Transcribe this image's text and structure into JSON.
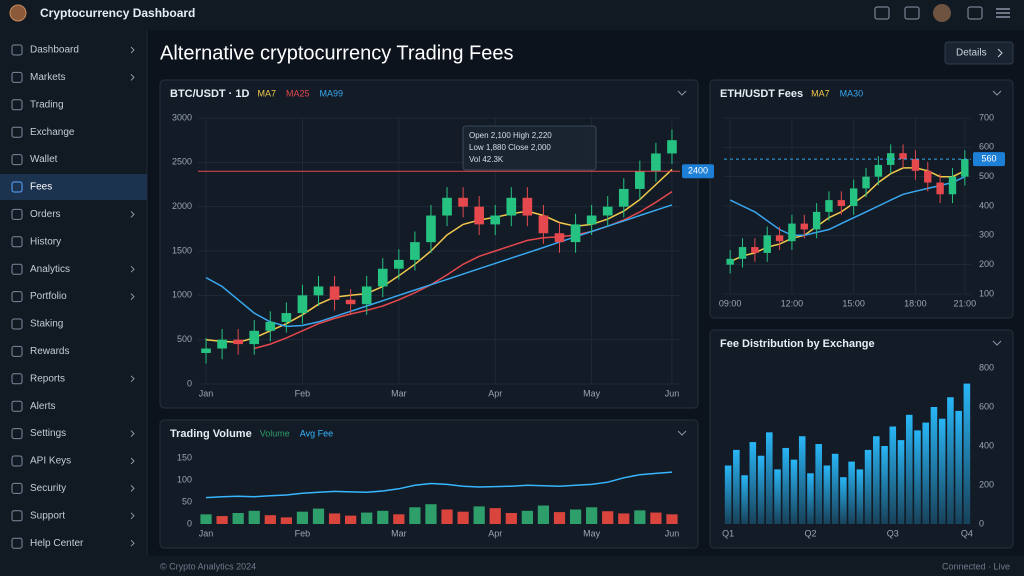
{
  "header": {
    "title": "Cryptocurrency Dashboard"
  },
  "page_title": "Alternative cryptocurrency Trading Fees",
  "button": {
    "label": "Details"
  },
  "footer": {
    "text": "© Crypto Analytics 2024",
    "status": "Connected · Live"
  },
  "sidebar": {
    "active_index": 5,
    "items": [
      {
        "label": "Dashboard",
        "has_submenu": true
      },
      {
        "label": "Markets",
        "has_submenu": true
      },
      {
        "label": "Trading",
        "has_submenu": false
      },
      {
        "label": "Exchange",
        "has_submenu": false
      },
      {
        "label": "Wallet",
        "has_submenu": false
      },
      {
        "label": "Fees",
        "has_submenu": false
      },
      {
        "label": "Orders",
        "has_submenu": true
      },
      {
        "label": "History",
        "has_submenu": false
      },
      {
        "label": "Analytics",
        "has_submenu": true
      },
      {
        "label": "Portfolio",
        "has_submenu": true
      },
      {
        "label": "Staking",
        "has_submenu": false
      },
      {
        "label": "Rewards",
        "has_submenu": false
      },
      {
        "label": "Reports",
        "has_submenu": true
      },
      {
        "label": "Alerts",
        "has_submenu": false
      },
      {
        "label": "Settings",
        "has_submenu": true
      },
      {
        "label": "API Keys",
        "has_submenu": true
      },
      {
        "label": "Security",
        "has_submenu": true
      },
      {
        "label": "Support",
        "has_submenu": true
      },
      {
        "label": "Help Center",
        "has_submenu": true
      }
    ]
  },
  "chart_data": [
    {
      "type": "candlestick",
      "title": "BTC/USDT · 1D",
      "y_axis_side": "left",
      "up_color": "#26c281",
      "down_color": "#e5484d",
      "grid": true,
      "ylim": [
        0,
        3000
      ],
      "yticks": [
        0,
        500,
        1000,
        1500,
        2000,
        2500,
        3000
      ],
      "categories": [
        "Jan",
        null,
        null,
        null,
        null,
        null,
        "Feb",
        null,
        null,
        null,
        null,
        null,
        "Mar",
        null,
        null,
        null,
        null,
        null,
        "Apr",
        null,
        null,
        null,
        null,
        null,
        "May",
        null,
        null,
        null,
        null,
        "Jun"
      ],
      "open": [
        350,
        400,
        500,
        450,
        600,
        700,
        800,
        1000,
        1100,
        950,
        900,
        1100,
        1300,
        1400,
        1600,
        1900,
        2100,
        2000,
        1800,
        1900,
        2100,
        1900,
        1700,
        1600,
        1800,
        1900,
        2000,
        2200,
        2400,
        2600
      ],
      "high": [
        520,
        620,
        620,
        720,
        820,
        920,
        1120,
        1220,
        1220,
        1070,
        1220,
        1420,
        1520,
        1720,
        2020,
        2220,
        2220,
        2120,
        2020,
        2220,
        2220,
        2020,
        1820,
        1920,
        2020,
        2120,
        2320,
        2520,
        2720,
        2870
      ],
      "low": [
        230,
        280,
        330,
        330,
        480,
        580,
        680,
        880,
        830,
        780,
        780,
        980,
        1180,
        1280,
        1480,
        1780,
        1880,
        1680,
        1680,
        1780,
        1780,
        1580,
        1480,
        1480,
        1680,
        1780,
        1880,
        2080,
        2280,
        2480
      ],
      "close": [
        400,
        500,
        450,
        600,
        700,
        800,
        1000,
        1100,
        950,
        900,
        1100,
        1300,
        1400,
        1600,
        1900,
        2100,
        2000,
        1800,
        1900,
        2100,
        1900,
        1700,
        1600,
        1800,
        1900,
        2000,
        2200,
        2400,
        2600,
        2750
      ],
      "series": [
        {
          "name": "MA7",
          "kind": "line",
          "color": "#f2c94c",
          "values": [
            500,
            480,
            470,
            520,
            600,
            680,
            780,
            900,
            980,
            1000,
            1020,
            1100,
            1220,
            1350,
            1500,
            1680,
            1800,
            1850,
            1880,
            1920,
            1950,
            1900,
            1820,
            1780,
            1800,
            1860,
            1950,
            2080,
            2250,
            2420
          ]
        },
        {
          "name": "MA25",
          "kind": "line",
          "color": "#e5484d",
          "values": [
            null,
            null,
            null,
            400,
            450,
            520,
            600,
            680,
            740,
            790,
            830,
            880,
            950,
            1030,
            1120,
            1230,
            1350,
            1440,
            1500,
            1560,
            1620,
            1650,
            1660,
            1680,
            1720,
            1780,
            1850,
            1940,
            2050,
            2170
          ]
        },
        {
          "name": "MA99",
          "kind": "line",
          "color": "#3aa8f0",
          "values": [
            1200,
            1100,
            950,
            800,
            700,
            650,
            660,
            700,
            760,
            820,
            880,
            940,
            1000,
            1060,
            1120,
            1180,
            1240,
            1300,
            1360,
            1420,
            1480,
            1540,
            1600,
            1660,
            1720,
            1780,
            1840,
            1900,
            1960,
            2020
          ]
        }
      ],
      "price_line": 2400,
      "price_line_color": "#e5484d",
      "tooltip": [
        "Open 2,100  High 2,220",
        "Low 1,880  Close 2,000",
        "Vol 42.3K"
      ]
    },
    {
      "type": "combo",
      "title": "Trading Volume",
      "y_axis_side": "left",
      "grid": false,
      "ylim": [
        0,
        150
      ],
      "yticks": [
        0,
        50,
        100,
        150
      ],
      "categories": [
        "Jan",
        null,
        null,
        null,
        null,
        null,
        "Feb",
        null,
        null,
        null,
        null,
        null,
        "Mar",
        null,
        null,
        null,
        null,
        null,
        "Apr",
        null,
        null,
        null,
        null,
        null,
        "May",
        null,
        null,
        null,
        null,
        "Jun"
      ],
      "series": [
        {
          "name": "Volume",
          "kind": "bar",
          "values": [
            22,
            18,
            25,
            30,
            20,
            15,
            28,
            35,
            24,
            19,
            26,
            30,
            22,
            38,
            45,
            33,
            28,
            40,
            36,
            25,
            30,
            42,
            27,
            33,
            38,
            29,
            24,
            31,
            26,
            22
          ],
          "colors": [
            "#2e9e6b",
            "#d9453d",
            "#2e9e6b",
            "#2e9e6b",
            "#d9453d",
            "#d9453d",
            "#2e9e6b",
            "#2e9e6b",
            "#d9453d",
            "#d9453d",
            "#2e9e6b",
            "#2e9e6b",
            "#d9453d",
            "#2e9e6b",
            "#2e9e6b",
            "#d9453d",
            "#d9453d",
            "#2e9e6b",
            "#d9453d",
            "#d9453d",
            "#2e9e6b",
            "#2e9e6b",
            "#d9453d",
            "#2e9e6b",
            "#2e9e6b",
            "#d9453d",
            "#d9453d",
            "#2e9e6b",
            "#d9453d",
            "#d9453d"
          ]
        },
        {
          "name": "Avg Fee",
          "kind": "line",
          "color": "#38b6ff",
          "values": [
            60,
            62,
            63,
            62,
            64,
            66,
            70,
            72,
            74,
            73,
            72,
            75,
            80,
            88,
            92,
            90,
            86,
            84,
            85,
            86,
            88,
            87,
            86,
            88,
            90,
            95,
            105,
            112,
            115,
            118
          ]
        }
      ]
    },
    {
      "type": "candlestick",
      "title": "ETH/USDT Fees",
      "y_axis_side": "right",
      "up_color": "#26c281",
      "down_color": "#e5484d",
      "grid": true,
      "ylim": [
        100,
        700
      ],
      "yticks": [
        100,
        200,
        300,
        400,
        500,
        600,
        700
      ],
      "categories": [
        "09:00",
        null,
        null,
        null,
        null,
        "12:00",
        null,
        null,
        null,
        null,
        "15:00",
        null,
        null,
        null,
        null,
        "18:00",
        null,
        null,
        null,
        "21:00"
      ],
      "open": [
        200,
        220,
        260,
        240,
        300,
        280,
        340,
        320,
        380,
        420,
        400,
        460,
        500,
        540,
        580,
        560,
        520,
        480,
        440,
        500
      ],
      "high": [
        250,
        290,
        290,
        330,
        330,
        370,
        370,
        410,
        450,
        450,
        490,
        530,
        570,
        610,
        610,
        590,
        550,
        510,
        530,
        590
      ],
      "low": [
        170,
        190,
        210,
        210,
        250,
        250,
        290,
        290,
        350,
        370,
        370,
        430,
        470,
        510,
        530,
        490,
        450,
        410,
        410,
        470
      ],
      "close": [
        220,
        260,
        240,
        300,
        280,
        340,
        320,
        380,
        420,
        400,
        460,
        500,
        540,
        580,
        560,
        520,
        480,
        440,
        500,
        560
      ],
      "series": [
        {
          "name": "MA7",
          "kind": "line",
          "color": "#f2c94c",
          "values": [
            210,
            230,
            240,
            260,
            270,
            290,
            300,
            330,
            360,
            380,
            410,
            440,
            480,
            510,
            530,
            530,
            520,
            500,
            500,
            520
          ]
        },
        {
          "name": "MA30",
          "kind": "line",
          "color": "#3aa8f0",
          "values": [
            420,
            400,
            380,
            350,
            320,
            300,
            300,
            310,
            320,
            340,
            360,
            380,
            400,
            420,
            440,
            450,
            460,
            470,
            480,
            500
          ]
        }
      ],
      "price_line": 560,
      "price_line_color": null
    },
    {
      "type": "bar",
      "title": "Fee Distribution by Exchange",
      "y_axis_side": "right",
      "color": "#29b6f6",
      "grid": false,
      "ylim": [
        0,
        800
      ],
      "yticks": [
        0,
        200,
        400,
        600,
        800
      ],
      "categories": [
        "Q1",
        null,
        null,
        null,
        null,
        null,
        null,
        null,
        null,
        null,
        "Q2",
        null,
        null,
        null,
        null,
        null,
        null,
        null,
        null,
        null,
        "Q3",
        null,
        null,
        null,
        null,
        null,
        null,
        null,
        null,
        "Q4"
      ],
      "values": [
        300,
        380,
        250,
        420,
        350,
        470,
        280,
        390,
        330,
        450,
        260,
        410,
        300,
        360,
        240,
        320,
        280,
        380,
        450,
        400,
        500,
        430,
        560,
        480,
        520,
        600,
        540,
        650,
        580,
        720
      ]
    }
  ]
}
